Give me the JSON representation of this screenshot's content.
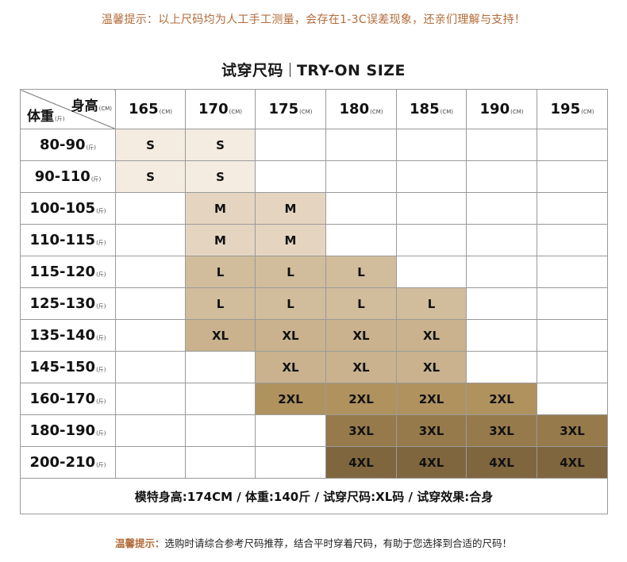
{
  "top_note": "温馨提示：以上尺码均为人工手工测量，会存在1-3C误差现象，还亲们理解与支持！",
  "title": {
    "cn": "试穿尺码",
    "en": "TRY-ON SIZE"
  },
  "header": {
    "height_label": "身高",
    "height_unit": "(CM)",
    "weight_label": "体重",
    "weight_unit": "(斤)",
    "heights": [
      "165",
      "170",
      "175",
      "180",
      "185",
      "190",
      "195"
    ],
    "col_unit": "(CM)"
  },
  "rows": [
    {
      "weight": "80-90",
      "unit": "(斤)",
      "sizes": [
        "S",
        "S",
        "",
        "",
        "",
        "",
        ""
      ]
    },
    {
      "weight": "90-110",
      "unit": "(斤)",
      "sizes": [
        "S",
        "S",
        "",
        "",
        "",
        "",
        ""
      ]
    },
    {
      "weight": "100-105",
      "unit": "(斤)",
      "sizes": [
        "",
        "M",
        "M",
        "",
        "",
        "",
        ""
      ]
    },
    {
      "weight": "110-115",
      "unit": "(斤)",
      "sizes": [
        "",
        "M",
        "M",
        "",
        "",
        "",
        ""
      ]
    },
    {
      "weight": "115-120",
      "unit": "(斤)",
      "sizes": [
        "",
        "L",
        "L",
        "L",
        "",
        "",
        ""
      ]
    },
    {
      "weight": "125-130",
      "unit": "(斤)",
      "sizes": [
        "",
        "L",
        "L",
        "L",
        "L",
        "",
        ""
      ]
    },
    {
      "weight": "135-140",
      "unit": "(斤)",
      "sizes": [
        "",
        "XL",
        "XL",
        "XL",
        "XL",
        "",
        ""
      ]
    },
    {
      "weight": "145-150",
      "unit": "(斤)",
      "sizes": [
        "",
        "",
        "XL",
        "XL",
        "XL",
        "",
        ""
      ]
    },
    {
      "weight": "160-170",
      "unit": "(斤)",
      "sizes": [
        "",
        "",
        "2XL",
        "2XL",
        "2XL",
        "2XL",
        ""
      ]
    },
    {
      "weight": "180-190",
      "unit": "(斤)",
      "sizes": [
        "",
        "",
        "",
        "3XL",
        "3XL",
        "3XL",
        "3XL"
      ]
    },
    {
      "weight": "200-210",
      "unit": "(斤)",
      "sizes": [
        "",
        "",
        "",
        "4XL",
        "4XL",
        "4XL",
        "4XL"
      ]
    }
  ],
  "size_colors": {
    "S": "#f4ebe1",
    "M": "#e5d5c0",
    "L": "#d1bc9c",
    "XL": "#c9b28d",
    "2XL": "#b0925f",
    "3XL": "#977a4c",
    "4XL": "#80663e"
  },
  "model_info": "模特身高:174CM  /  体重:140斤  /  试穿尺码:XL码  /  试穿效果:合身",
  "bottom_note": {
    "label": "温馨提示：",
    "text": "选购时请综合参考尺码推荐，结合平时穿着尺码，有助于您选择到合适的尺码！"
  }
}
